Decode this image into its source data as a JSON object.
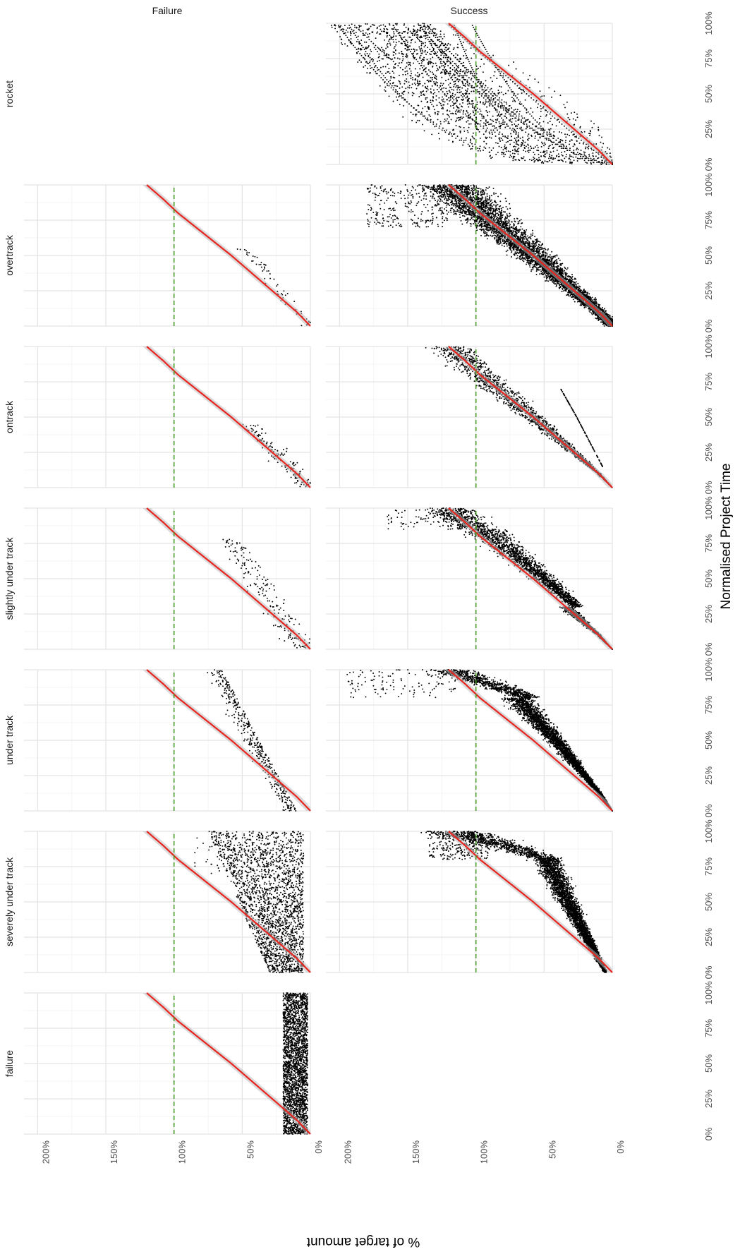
{
  "chart_data": {
    "type": "scatter",
    "orientation": "figure rendered rotated 90 degrees clockwise",
    "xlabel": "Normalised Project Time",
    "ylabel": "% of target amount",
    "x_ticks": [
      "0%",
      "25%",
      "50%",
      "75%",
      "100%"
    ],
    "y_ticks": [
      "0%",
      "50%",
      "100%",
      "150%",
      "200%"
    ],
    "xlim": [
      0,
      1
    ],
    "ylim": [
      0,
      2.1
    ],
    "column_facets": [
      "Failure",
      "Success"
    ],
    "row_facets": [
      "rocket",
      "overtrack",
      "ontrack",
      "slightly under track",
      "under track",
      "severely under track",
      "failure"
    ],
    "reference_line": {
      "y": 1.0,
      "style": "dashed",
      "color": "#4a9a2a"
    },
    "reference_curve": {
      "color": "#e8251f",
      "x": [
        0,
        0.1,
        0.2,
        0.3,
        0.4,
        0.5,
        0.6,
        0.7,
        0.8,
        0.9,
        1.0
      ],
      "y": [
        0.0,
        0.1,
        0.22,
        0.34,
        0.46,
        0.58,
        0.71,
        0.84,
        0.97,
        1.08,
        1.2
      ]
    },
    "points_color": "#000000",
    "panels": [
      {
        "row": "rocket",
        "col": "Success",
        "pattern": "rocket"
      },
      {
        "row": "overtrack",
        "col": "Failure",
        "pattern": "over_fail"
      },
      {
        "row": "overtrack",
        "col": "Success",
        "pattern": "over_succ"
      },
      {
        "row": "ontrack",
        "col": "Failure",
        "pattern": "on_fail"
      },
      {
        "row": "ontrack",
        "col": "Success",
        "pattern": "on_succ"
      },
      {
        "row": "slightly under track",
        "col": "Failure",
        "pattern": "slight_fail"
      },
      {
        "row": "slightly under track",
        "col": "Success",
        "pattern": "slight_succ"
      },
      {
        "row": "under track",
        "col": "Failure",
        "pattern": "under_fail"
      },
      {
        "row": "under track",
        "col": "Success",
        "pattern": "under_succ"
      },
      {
        "row": "severely under track",
        "col": "Failure",
        "pattern": "severe_fail"
      },
      {
        "row": "severely under track",
        "col": "Success",
        "pattern": "severe_succ"
      },
      {
        "row": "failure",
        "col": "Failure",
        "pattern": "failure_fail"
      }
    ]
  }
}
